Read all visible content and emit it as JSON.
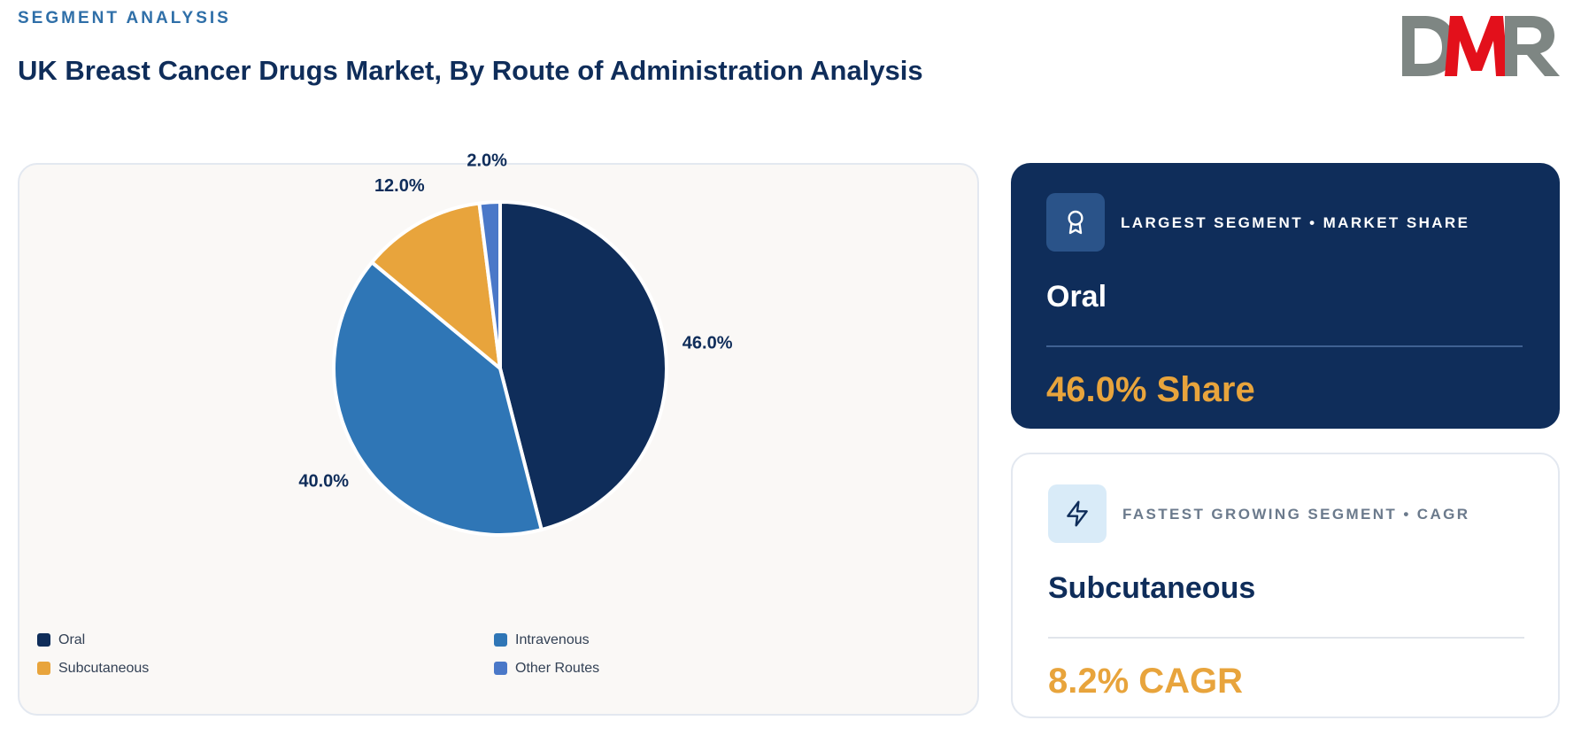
{
  "header": {
    "kicker": "SEGMENT ANALYSIS",
    "title": "UK Breast Cancer Drugs Market, By Route of Administration Analysis"
  },
  "logo": {
    "text": "DMR",
    "colors": {
      "d": "#7e8683",
      "m": "#e3101b",
      "r": "#7e8683"
    }
  },
  "chart_data": {
    "type": "pie",
    "title": "",
    "categories": [
      "Oral",
      "Intravenous",
      "Subcutaneous",
      "Other Routes"
    ],
    "values": [
      46.0,
      40.0,
      12.0,
      2.0
    ],
    "labels": [
      "46.0%",
      "40.0%",
      "12.0%",
      "2.0%"
    ],
    "colors": [
      "#0f2d5a",
      "#2f76b6",
      "#e8a43c",
      "#4a78c8"
    ],
    "start_angle_deg": 0,
    "direction": "clockwise",
    "legend_position": "bottom"
  },
  "legend": [
    {
      "label": "Oral",
      "color": "#0f2d5a"
    },
    {
      "label": "Intravenous",
      "color": "#2f76b6"
    },
    {
      "label": "Subcutaneous",
      "color": "#e8a43c"
    },
    {
      "label": "Other Routes",
      "color": "#4a78c8"
    }
  ],
  "cards": {
    "largest": {
      "heading": "LARGEST SEGMENT • MARKET SHARE",
      "name": "Oral",
      "value": "46.0% Share",
      "icon": "award-icon"
    },
    "fastest": {
      "heading": "FASTEST GROWING SEGMENT • CAGR",
      "name": "Subcutaneous",
      "value": "8.2% CAGR",
      "icon": "lightning-icon"
    }
  },
  "colors": {
    "navy": "#0f2d5a",
    "accent_blue": "#2f6fa8",
    "gold": "#e8a43c"
  }
}
